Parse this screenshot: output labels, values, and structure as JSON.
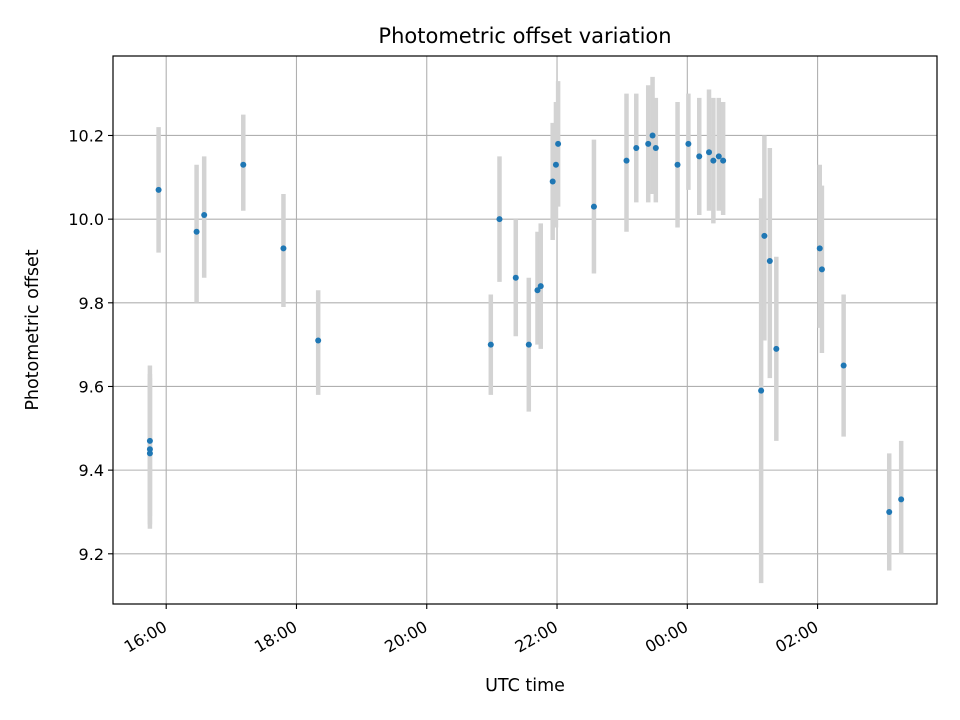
{
  "chart_data": {
    "type": "scatter",
    "title": "Photometric offset variation",
    "xlabel": "UTC time",
    "ylabel": "Photometric offset",
    "x_unit": "UTC time (h:mm), continuing past midnight",
    "xlim": [
      "15:11",
      "03:50"
    ],
    "ylim": [
      9.08,
      10.39
    ],
    "x_ticks": [
      "16:00",
      "18:00",
      "20:00",
      "22:00",
      "00:00",
      "02:00"
    ],
    "y_ticks": [
      "9.2",
      "9.4",
      "9.6",
      "9.8",
      "10.0",
      "10.2"
    ],
    "grid": true,
    "point_color": "#1f77b4",
    "errorbar_color": "#d3d3d3",
    "points": [
      {
        "x": "15:45",
        "y": 9.47,
        "ylo": 9.29,
        "yhi": 9.65
      },
      {
        "x": "15:45",
        "y": 9.45,
        "ylo": 9.27,
        "yhi": 9.63
      },
      {
        "x": "15:45",
        "y": 9.44,
        "ylo": 9.26,
        "yhi": 9.62
      },
      {
        "x": "15:53",
        "y": 10.07,
        "ylo": 9.92,
        "yhi": 10.22
      },
      {
        "x": "16:28",
        "y": 9.97,
        "ylo": 9.8,
        "yhi": 10.13
      },
      {
        "x": "16:35",
        "y": 10.01,
        "ylo": 9.86,
        "yhi": 10.15
      },
      {
        "x": "17:11",
        "y": 10.13,
        "ylo": 10.02,
        "yhi": 10.25
      },
      {
        "x": "17:48",
        "y": 9.93,
        "ylo": 9.79,
        "yhi": 10.06
      },
      {
        "x": "18:20",
        "y": 9.71,
        "ylo": 9.58,
        "yhi": 9.83
      },
      {
        "x": "20:59",
        "y": 9.7,
        "ylo": 9.58,
        "yhi": 9.82
      },
      {
        "x": "21:07",
        "y": 10.0,
        "ylo": 9.85,
        "yhi": 10.15
      },
      {
        "x": "21:22",
        "y": 9.86,
        "ylo": 9.72,
        "yhi": 10.0
      },
      {
        "x": "21:34",
        "y": 9.7,
        "ylo": 9.54,
        "yhi": 9.86
      },
      {
        "x": "21:42",
        "y": 9.83,
        "ylo": 9.7,
        "yhi": 9.97
      },
      {
        "x": "21:45",
        "y": 9.84,
        "ylo": 9.69,
        "yhi": 9.99
      },
      {
        "x": "21:56",
        "y": 10.09,
        "ylo": 9.95,
        "yhi": 10.23
      },
      {
        "x": "21:59",
        "y": 10.13,
        "ylo": 9.98,
        "yhi": 10.28
      },
      {
        "x": "22:01",
        "y": 10.18,
        "ylo": 10.03,
        "yhi": 10.33
      },
      {
        "x": "22:34",
        "y": 10.03,
        "ylo": 9.87,
        "yhi": 10.19
      },
      {
        "x": "23:04",
        "y": 10.14,
        "ylo": 9.97,
        "yhi": 10.3
      },
      {
        "x": "23:13",
        "y": 10.17,
        "ylo": 10.04,
        "yhi": 10.3
      },
      {
        "x": "23:24",
        "y": 10.18,
        "ylo": 10.04,
        "yhi": 10.32
      },
      {
        "x": "23:28",
        "y": 10.2,
        "ylo": 10.06,
        "yhi": 10.34
      },
      {
        "x": "23:31",
        "y": 10.17,
        "ylo": 10.04,
        "yhi": 10.29
      },
      {
        "x": "23:51",
        "y": 10.13,
        "ylo": 9.98,
        "yhi": 10.28
      },
      {
        "x": "00:01",
        "y": 10.18,
        "ylo": 10.07,
        "yhi": 10.3
      },
      {
        "x": "00:11",
        "y": 10.15,
        "ylo": 10.01,
        "yhi": 10.29
      },
      {
        "x": "00:20",
        "y": 10.16,
        "ylo": 10.02,
        "yhi": 10.31
      },
      {
        "x": "00:24",
        "y": 10.14,
        "ylo": 9.99,
        "yhi": 10.29
      },
      {
        "x": "00:29",
        "y": 10.15,
        "ylo": 10.02,
        "yhi": 10.29
      },
      {
        "x": "00:33",
        "y": 10.14,
        "ylo": 10.01,
        "yhi": 10.28
      },
      {
        "x": "01:08",
        "y": 9.59,
        "ylo": 9.13,
        "yhi": 10.05
      },
      {
        "x": "01:11",
        "y": 9.96,
        "ylo": 9.71,
        "yhi": 10.2
      },
      {
        "x": "01:16",
        "y": 9.9,
        "ylo": 9.62,
        "yhi": 10.17
      },
      {
        "x": "01:22",
        "y": 9.69,
        "ylo": 9.47,
        "yhi": 9.91
      },
      {
        "x": "02:02",
        "y": 9.93,
        "ylo": 9.74,
        "yhi": 10.13
      },
      {
        "x": "02:04",
        "y": 9.88,
        "ylo": 9.68,
        "yhi": 10.08
      },
      {
        "x": "02:24",
        "y": 9.65,
        "ylo": 9.48,
        "yhi": 9.82
      },
      {
        "x": "03:06",
        "y": 9.3,
        "ylo": 9.16,
        "yhi": 9.44
      },
      {
        "x": "03:17",
        "y": 9.33,
        "ylo": 9.2,
        "yhi": 9.47
      }
    ]
  }
}
